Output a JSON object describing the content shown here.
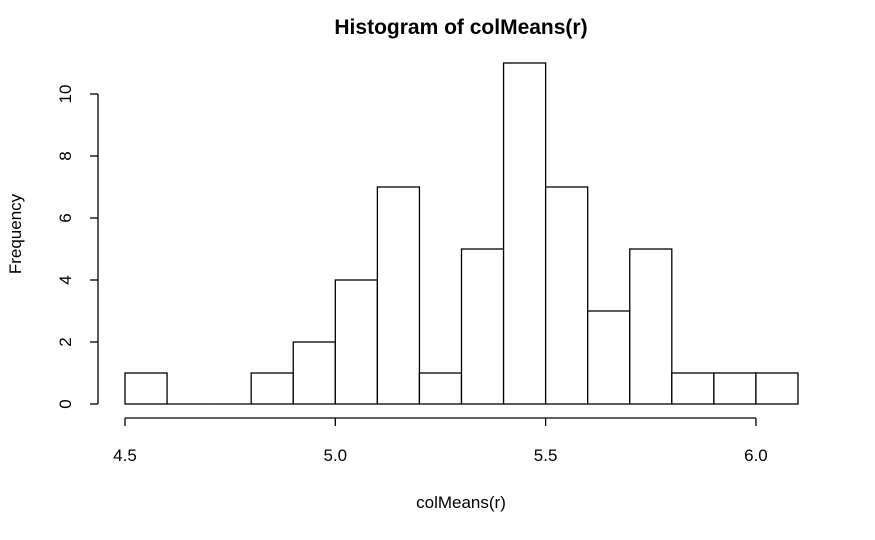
{
  "chart_data": {
    "type": "bar",
    "title": "Histogram of colMeans(r)",
    "xlabel": "colMeans(r)",
    "ylabel": "Frequency",
    "bin_edges": [
      4.5,
      4.6,
      4.7,
      4.8,
      4.9,
      5.0,
      5.1,
      5.2,
      5.3,
      5.4,
      5.5,
      5.6,
      5.7,
      5.8,
      5.9,
      6.0,
      6.1
    ],
    "values": [
      1,
      0,
      0,
      1,
      2,
      4,
      7,
      1,
      5,
      11,
      7,
      3,
      5,
      1,
      1,
      1
    ],
    "xticks": [
      4.5,
      5.0,
      5.5,
      6.0
    ],
    "xtick_labels": [
      "4.5",
      "5.0",
      "5.5",
      "6.0"
    ],
    "yticks": [
      0,
      2,
      4,
      6,
      8,
      10
    ],
    "ytick_labels": [
      "0",
      "2",
      "4",
      "6",
      "8",
      "10"
    ],
    "xlim": [
      4.5,
      6.1
    ],
    "ylim": [
      0,
      11
    ],
    "grid": false,
    "colors": {
      "bar_fill": "#ffffff",
      "bar_stroke": "#000000"
    }
  }
}
